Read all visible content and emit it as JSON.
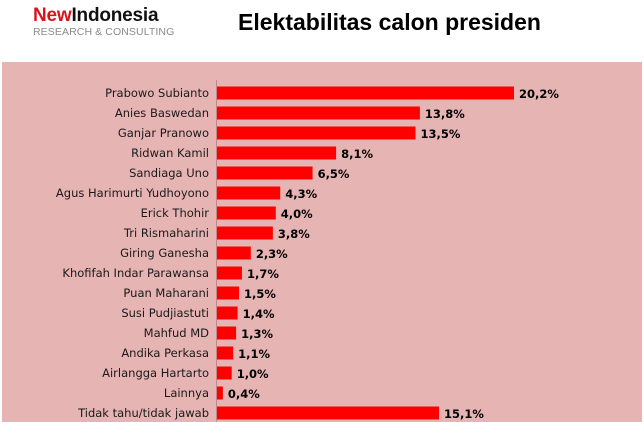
{
  "logo": {
    "brand_colored": "New",
    "brand_rest": "Indonesia",
    "tagline": "RESEARCH & CONSULTING"
  },
  "colors": {
    "bar": "#ff0000",
    "panel_background": "#e7b4b4",
    "brand_red": "#d7141a"
  },
  "chart_data": {
    "type": "bar",
    "orientation": "horizontal",
    "title": "Elektabilitas calon presiden",
    "xlabel": "",
    "ylabel": "",
    "unit": "%",
    "xlim": [
      0,
      22
    ],
    "grid": false,
    "legend": "none",
    "categories": [
      "Prabowo Subianto",
      "Anies Baswedan",
      "Ganjar Pranowo",
      "Ridwan Kamil",
      "Sandiaga Uno",
      "Agus Harimurti Yudhoyono",
      "Erick Thohir",
      "Tri Rismaharini",
      "Giring Ganesha",
      "Khofifah Indar Parawansa",
      "Puan Maharani",
      "Susi Pudjiastuti",
      "Mahfud MD",
      "Andika Perkasa",
      "Airlangga Hartarto",
      "Lainnya",
      "Tidak tahu/tidak jawab"
    ],
    "values": [
      20.2,
      13.8,
      13.5,
      8.1,
      6.5,
      4.3,
      4.0,
      3.8,
      2.3,
      1.7,
      1.5,
      1.4,
      1.3,
      1.1,
      1.0,
      0.4,
      15.1
    ],
    "value_labels": [
      "20,2%",
      "13,8%",
      "13,5%",
      "8,1%",
      "6,5%",
      "4,3%",
      "4,0%",
      "3,8%",
      "2,3%",
      "1,7%",
      "1,5%",
      "1,4%",
      "1,3%",
      "1,1%",
      "1,0%",
      "0,4%",
      "15,1%"
    ]
  }
}
